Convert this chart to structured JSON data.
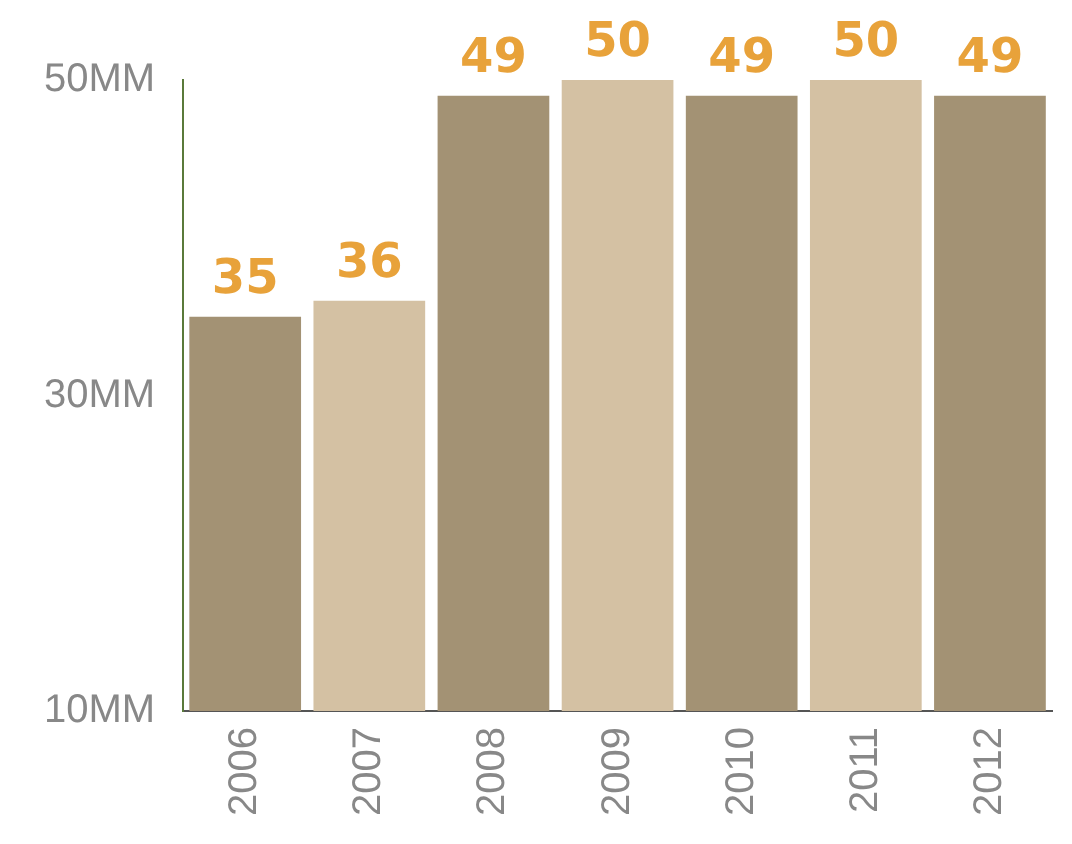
{
  "chart_data": {
    "type": "bar",
    "categories": [
      "2006",
      "2007",
      "2008",
      "2009",
      "2010",
      "2011",
      "2012"
    ],
    "values": [
      35,
      36,
      49,
      50,
      49,
      50,
      49
    ],
    "colors": [
      "#a39274",
      "#d4c1a3",
      "#a39274",
      "#d4c1a3",
      "#a39274",
      "#d4c1a3",
      "#a39274"
    ],
    "ylim": [
      10,
      50
    ],
    "yticks": [
      {
        "value": 10,
        "label": "10MM"
      },
      {
        "value": 30,
        "label": "30MM"
      },
      {
        "value": 50,
        "label": "50MM"
      }
    ],
    "grid": false,
    "legend": false,
    "data_labels": true
  }
}
